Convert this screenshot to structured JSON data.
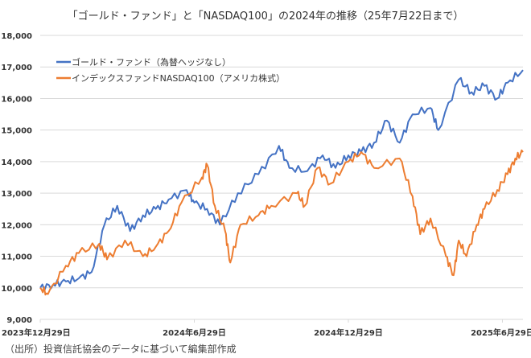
{
  "chart_data": {
    "type": "line",
    "title": "「ゴールド・ファンド」と「NASDAQ100」の2024年の推移（25年7月22日まで）",
    "xlabel": "",
    "ylabel": "",
    "x_unit": "months since 2023-12-29",
    "xlim": [
      0,
      18.8
    ],
    "ylim": [
      9000,
      18000
    ],
    "yticks": [
      9000,
      10000,
      11000,
      12000,
      13000,
      14000,
      15000,
      16000,
      17000,
      18000
    ],
    "ytick_labels": [
      "9,000",
      "10,000",
      "11,000",
      "12,000",
      "13,000",
      "14,000",
      "15,000",
      "16,000",
      "17,000",
      "18,000"
    ],
    "xticks": [
      0,
      6,
      12,
      18
    ],
    "xtick_labels": [
      "2023年12月29日",
      "2024年6月29日",
      "2024年12月29日",
      "2025年6月29日"
    ],
    "grid": "horizontal",
    "legend_position": "top-left",
    "series": [
      {
        "name": "ゴールド・ファンド（為替ヘッジなし）",
        "color": "#4472C4",
        "x": [
          0,
          0.5,
          1,
          1.5,
          2,
          2.5,
          3,
          3.5,
          4,
          4.5,
          5,
          5.7,
          6,
          6.5,
          7,
          7.7,
          8.5,
          9.3,
          9.7,
          10.4,
          11,
          11.5,
          12,
          12.5,
          13,
          13.5,
          14,
          14.5,
          15.2,
          15.5,
          16.3,
          16.8,
          17.3,
          17.8,
          18.2,
          18.8
        ],
        "values": [
          10000,
          10100,
          10200,
          10300,
          10500,
          12000,
          12600,
          11800,
          12300,
          12500,
          12800,
          13100,
          12700,
          12500,
          12000,
          13000,
          13600,
          14500,
          13800,
          13700,
          14200,
          13800,
          14200,
          14300,
          14600,
          15300,
          14600,
          15500,
          15700,
          15000,
          16600,
          16200,
          16400,
          16000,
          16500,
          16900
        ]
      },
      {
        "name": "インデックスファンドNASDAQ100（アメリカ株式）",
        "color": "#ED7D31",
        "x": [
          0,
          0.3,
          1,
          1.5,
          2.3,
          2.6,
          3.3,
          4,
          4.5,
          5,
          5.5,
          6.3,
          6.5,
          6.8,
          7.2,
          7.4,
          7.8,
          8.5,
          9,
          10,
          10.3,
          10.8,
          11.3,
          12,
          12.5,
          13,
          14,
          14.5,
          14.8,
          15.2,
          15.8,
          16.1,
          16.3,
          16.6,
          17,
          17.3,
          17.8,
          18.2,
          18.5,
          18.8
        ],
        "values": [
          10000,
          9800,
          10700,
          11100,
          11400,
          10900,
          11500,
          11000,
          11300,
          11800,
          12700,
          13500,
          13900,
          12600,
          11800,
          10800,
          12000,
          12300,
          12600,
          13000,
          12600,
          13800,
          13300,
          14000,
          14300,
          13800,
          14100,
          12900,
          11700,
          12200,
          11000,
          10400,
          11500,
          11000,
          12000,
          12500,
          13100,
          13600,
          14100,
          14300
        ]
      }
    ]
  },
  "source_note": "（出所）投資信託協会のデータに基づいて編集部作成"
}
